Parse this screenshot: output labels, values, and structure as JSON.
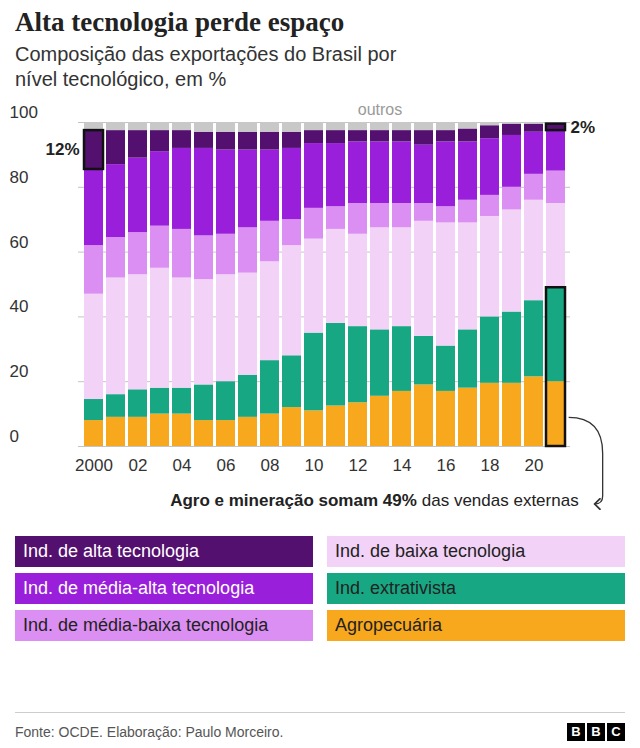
{
  "chart_data": {
    "type": "bar",
    "title": "Alta tecnologia perde espaço",
    "subtitle": "Composição das exportações do Brasil por nível tecnológico, em %",
    "source": "Fonte: OCDE. Elaboração: Paulo Morceiro.",
    "logo": "BBC",
    "stacked": true,
    "grid": true,
    "legend": "bottom",
    "categories": [
      "2000",
      null,
      "02",
      null,
      "04",
      null,
      "06",
      null,
      "08",
      null,
      "10",
      null,
      "12",
      null,
      "14",
      null,
      "16",
      null,
      "18",
      null,
      "20",
      null
    ],
    "ylim": [
      0,
      100
    ],
    "yticks": [
      0,
      20,
      40,
      60,
      80,
      100
    ],
    "series": [
      {
        "name": "Agropecuária",
        "color": "#f8a81c",
        "values": [
          8,
          9,
          9,
          10,
          10,
          8,
          8,
          9,
          10,
          12,
          11,
          12.5,
          13.5,
          15.5,
          17,
          19,
          17,
          18,
          19.5,
          19.5,
          21.5,
          20
        ]
      },
      {
        "name": "Ind. extrativista",
        "color": "#17a883",
        "values": [
          6.5,
          7,
          8.5,
          8,
          8,
          11,
          12,
          13,
          16.5,
          16,
          24,
          25.5,
          23.5,
          20.5,
          20,
          15,
          14,
          18,
          20.5,
          22,
          23.5,
          29
        ]
      },
      {
        "name": "Ind. de baixa tecnologia",
        "color": "#f2d3f7",
        "values": [
          32.5,
          36,
          35.5,
          37,
          34,
          32.5,
          33,
          31.5,
          30.5,
          34,
          29,
          29,
          28.5,
          31.5,
          30.5,
          35.5,
          38,
          33,
          31,
          31.5,
          31,
          26
        ]
      },
      {
        "name": "Ind. de média-baixa tecnologia",
        "color": "#dc8ff2",
        "values": [
          15,
          12.5,
          13,
          13,
          15,
          13.5,
          12.5,
          14,
          12.5,
          8,
          9.5,
          7,
          9.5,
          7.5,
          7.5,
          5.5,
          5,
          7,
          6.5,
          7,
          8,
          10
        ]
      },
      {
        "name": "Ind. de média-alta tecnologia",
        "color": "#9a1fdb",
        "values": [
          23.5,
          22.5,
          23,
          23,
          25,
          27,
          26,
          24,
          22,
          22,
          20,
          19.5,
          19,
          19,
          19,
          18,
          20,
          18,
          17.5,
          16,
          13,
          12.5
        ]
      },
      {
        "name": "Ind. de alta tecnologia",
        "color": "#54106f",
        "values": [
          12,
          10.5,
          8.5,
          6.5,
          5.5,
          5,
          5.5,
          5.5,
          5.5,
          5,
          4,
          4,
          3.5,
          3.5,
          3.5,
          4.5,
          3.5,
          4,
          4,
          3.5,
          2.5,
          2
        ]
      },
      {
        "name": "outros",
        "color": "#c8c8c8",
        "values": [
          2.5,
          2.5,
          2.5,
          2.5,
          2.5,
          3,
          3,
          3,
          3,
          3,
          2.5,
          2.5,
          2.5,
          2.5,
          2.5,
          2.5,
          2.5,
          2,
          1,
          0.5,
          0.5,
          0.5
        ]
      }
    ],
    "annotations": [
      {
        "label": "12%",
        "value": 12,
        "category_index": 0,
        "series": [
          "Ind. de alta tecnologia"
        ]
      },
      {
        "label": "2%",
        "value": 2,
        "category_index": 21,
        "series": [
          "Ind. de alta tecnologia"
        ]
      },
      {
        "label": "outros",
        "series": [
          "outros"
        ]
      },
      {
        "text_parts": [
          "Agro e mineração somam 49%",
          "das vendas externas"
        ],
        "value": 49,
        "category_index": 21,
        "series": [
          "Agropecuária",
          "Ind. extrativista"
        ]
      }
    ]
  }
}
